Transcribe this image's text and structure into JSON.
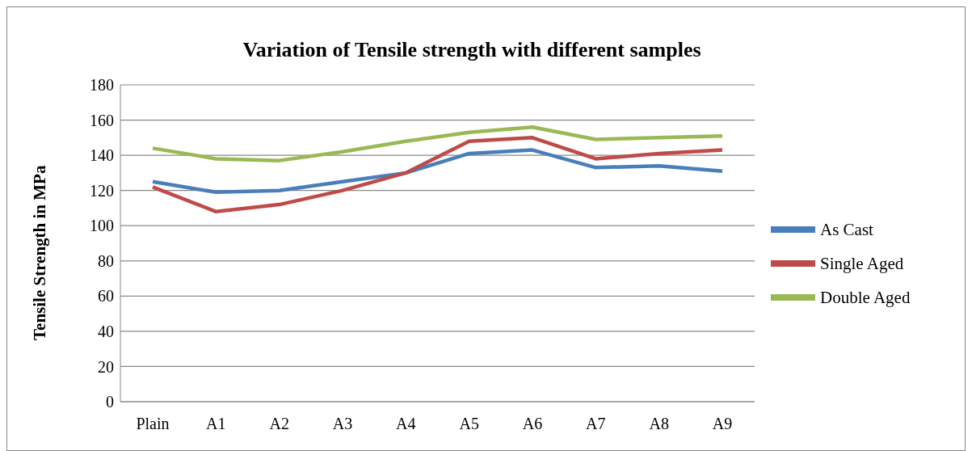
{
  "chart_data": {
    "type": "line",
    "title": "Variation of Tensile strength with different samples",
    "ylabel": "Tensile Strength in MPa",
    "categories": [
      "Plain",
      "A1",
      "A2",
      "A3",
      "A4",
      "A5",
      "A6",
      "A7",
      "A8",
      "A9"
    ],
    "series": [
      {
        "name": "As Cast",
        "color": "#4a7ebb",
        "values": [
          125,
          119,
          120,
          125,
          130,
          141,
          143,
          133,
          134,
          131
        ]
      },
      {
        "name": "Single Aged",
        "color": "#be4b48",
        "values": [
          122,
          108,
          112,
          120,
          130,
          148,
          150,
          138,
          141,
          143
        ]
      },
      {
        "name": "Double Aged",
        "color": "#98b954",
        "values": [
          144,
          138,
          137,
          142,
          148,
          153,
          156,
          149,
          150,
          151
        ]
      }
    ],
    "ylim": [
      0,
      180
    ],
    "yticks": [
      0,
      20,
      40,
      60,
      80,
      100,
      120,
      140,
      160,
      180
    ],
    "grid": "y",
    "legend": "right",
    "marker": "none",
    "line_style": "solid"
  }
}
